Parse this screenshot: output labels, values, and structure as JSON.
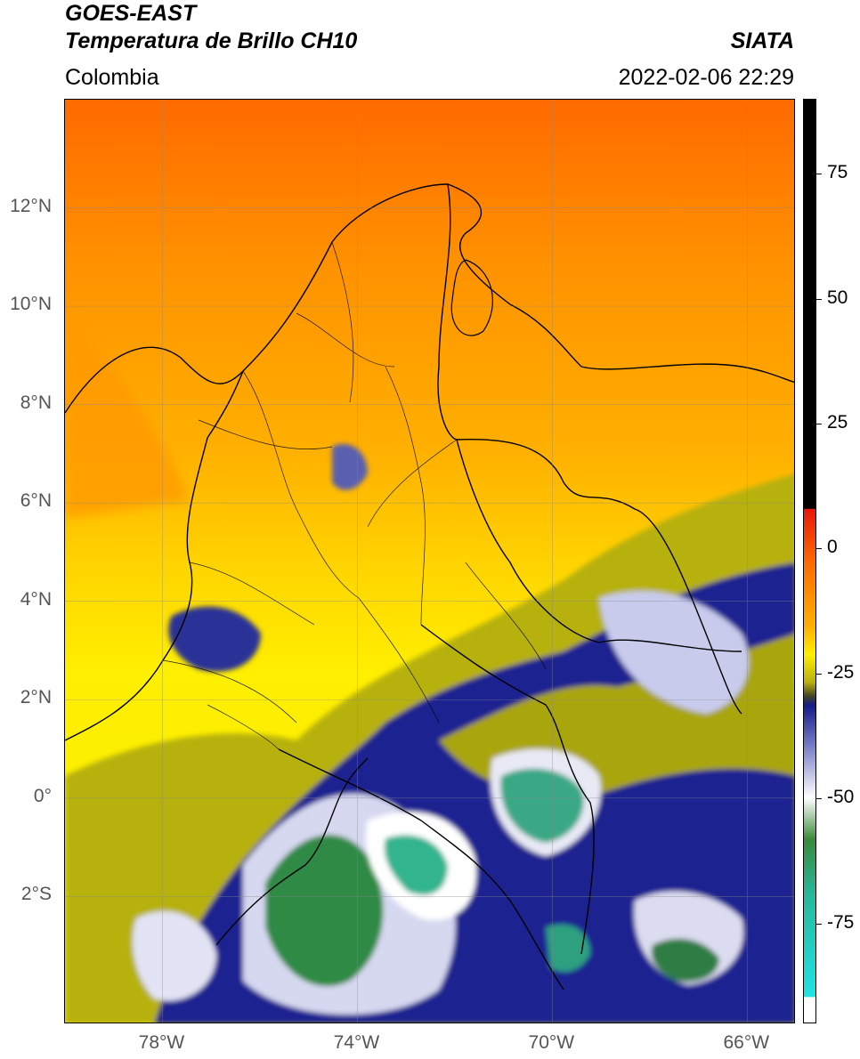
{
  "header": {
    "satellite": "GOES-EAST",
    "product": "Temperatura de Brillo CH10",
    "region": "Colombia",
    "agency": "SIATA",
    "datetime": "2022-02-06 22:29"
  },
  "map": {
    "lon_range": [
      -80,
      -65
    ],
    "lat_range": [
      -4.6,
      14.2
    ],
    "grid": true,
    "lat_ticks": [
      "12°N",
      "10°N",
      "8°N",
      "6°N",
      "4°N",
      "2°N",
      "0°",
      "2°S"
    ],
    "lat_values": [
      12,
      10,
      8,
      6,
      4,
      2,
      0,
      -2
    ],
    "lon_ticks": [
      "78°W",
      "74°W",
      "70°W",
      "66°W"
    ],
    "lon_values": [
      -78,
      -74,
      -70,
      -66
    ]
  },
  "colorbar": {
    "ticks": [
      "75",
      "50",
      "25",
      "0",
      "-25",
      "-50",
      "-75"
    ],
    "values": [
      75,
      50,
      25,
      0,
      -25,
      -50,
      -75
    ],
    "range": [
      -95,
      90
    ],
    "colors": {
      "high": "#000000",
      "red": "#e8160c",
      "orange": "#ff8c00",
      "yellow": "#ffef00",
      "olive": "#9a9a10",
      "navy": "#151b8a",
      "white": "#ffffff",
      "green": "#2e7d32",
      "teal": "#27b89c",
      "cyan": "#1fe3e3"
    }
  }
}
